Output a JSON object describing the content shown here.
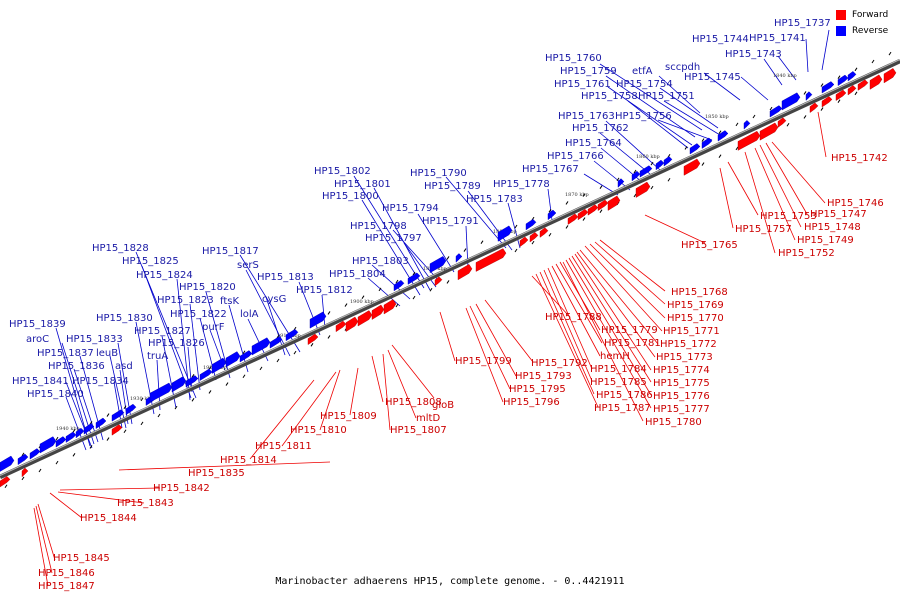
{
  "caption": "Marinobacter adhaerens HP15, complete genome. - 0..4421911",
  "legend": {
    "forward_label": "Forward",
    "reverse_label": "Reverse",
    "forward_color": "#ff0000",
    "reverse_color": "#0000ff"
  },
  "kbp_labels": [
    "1840 kbp",
    "1850 kbp",
    "1860 kbp",
    "1870 kbp",
    "1880 kbp",
    "1890 kbp",
    "1900 kbp",
    "1910 kbp",
    "1920 kbp",
    "1930 kbp",
    "1940 kbp"
  ],
  "forward_genes": [
    "HP15_1742",
    "HP15_1746",
    "HP15_1747",
    "HP15_1748",
    "HP15_1749",
    "HP15_1752",
    "HP15_1753",
    "HP15_1757",
    "HP15_1765",
    "HP15_1768",
    "HP15_1769",
    "HP15_1770",
    "HP15_1771",
    "HP15_1772",
    "HP15_1773",
    "HP15_1774",
    "HP15_1775",
    "HP15_1776",
    "HP15_1777",
    "HP15_1780",
    "HP15_1788",
    "HP15_1779",
    "HP15_1781",
    "hemH",
    "HP15_1784",
    "HP15_1785",
    "HP15_1786",
    "HP15_1787",
    "HP15_1792",
    "HP15_1793",
    "HP15_1795",
    "HP15_1796",
    "HP15_1799",
    "gloB",
    "mltD",
    "HP15_1807",
    "HP15_1808",
    "HP15_1809",
    "HP15_1810",
    "HP15_1811",
    "HP15_1814",
    "HP15_1835",
    "HP15_1842",
    "HP15_1843",
    "HP15_1844",
    "HP15_1845",
    "HP15_1846",
    "HP15_1847"
  ],
  "reverse_genes": [
    "HP15_1737",
    "HP15_1741",
    "HP15_1744",
    "HP15_1743",
    "HP15_1745",
    "sccpdh",
    "etfA",
    "HP15_1760",
    "HP15_1759",
    "HP15_1761",
    "HP15_1754",
    "HP15_1758",
    "HP15_1751",
    "HP15_1763",
    "HP15_1756",
    "HP15_1762",
    "HP15_1764",
    "HP15_1766",
    "HP15_1767",
    "HP15_1778",
    "HP15_1790",
    "HP15_1789",
    "HP15_1783",
    "HP15_1802",
    "HP15_1801",
    "HP15_1800",
    "HP15_1794",
    "HP15_1798",
    "HP15_1797",
    "HP15_1791",
    "HP15_1817",
    "serS",
    "HP15_1803",
    "HP15_1804",
    "HP15_1813",
    "cysG",
    "HP15_1812",
    "HP15_1828",
    "HP15_1825",
    "HP15_1824",
    "HP15_1820",
    "ftsK",
    "HP15_1823",
    "lolA",
    "HP15_1822",
    "purF",
    "HP15_1830",
    "HP15_1827",
    "HP15_1839",
    "aroC",
    "HP15_1833",
    "HP15_1826",
    "HP15_1837",
    "leuB",
    "truA",
    "HP15_1836",
    "asd",
    "HP15_1841",
    "HP15_1834",
    "HP15_1840"
  ]
}
